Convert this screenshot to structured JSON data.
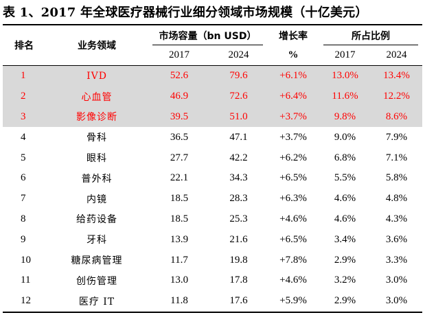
{
  "title": "表 1、2017 年全球医疗器械行业细分领域市场规模（十亿美元）",
  "header": {
    "rank": "排名",
    "field": "业务领域",
    "market_group": "市场容量（bn USD）",
    "growth_top": "增长率",
    "growth_bottom": "%",
    "share_group": "所占比例",
    "y2017": "2017",
    "y2024": "2024",
    "s2017": "2017",
    "s2024": "2024"
  },
  "colors": {
    "highlight_bg": "#d9d9d9",
    "highlight_text": "#ff0000"
  },
  "rows": [
    {
      "rank": "1",
      "field": "IVD",
      "v2017": "52.6",
      "v2024": "79.6",
      "growth": "+6.1%",
      "s2017": "13.0%",
      "s2024": "13.4%",
      "highlight": true
    },
    {
      "rank": "2",
      "field": "心血管",
      "v2017": "46.9",
      "v2024": "72.6",
      "growth": "+6.4%",
      "s2017": "11.6%",
      "s2024": "12.2%",
      "highlight": true
    },
    {
      "rank": "3",
      "field": "影像诊断",
      "v2017": "39.5",
      "v2024": "51.0",
      "growth": "+3.7%",
      "s2017": "9.8%",
      "s2024": "8.6%",
      "highlight": true
    },
    {
      "rank": "4",
      "field": "骨科",
      "v2017": "36.5",
      "v2024": "47.1",
      "growth": "+3.7%",
      "s2017": "9.0%",
      "s2024": "7.9%"
    },
    {
      "rank": "5",
      "field": "眼科",
      "v2017": "27.7",
      "v2024": "42.2",
      "growth": "+6.2%",
      "s2017": "6.8%",
      "s2024": "7.1%"
    },
    {
      "rank": "6",
      "field": "普外科",
      "v2017": "22.1",
      "v2024": "34.3",
      "growth": "+6.5%",
      "s2017": "5.5%",
      "s2024": "5.8%"
    },
    {
      "rank": "7",
      "field": "内镜",
      "v2017": "18.5",
      "v2024": "28.3",
      "growth": "+6.3%",
      "s2017": "4.6%",
      "s2024": "4.8%"
    },
    {
      "rank": "8",
      "field": "给药设备",
      "v2017": "18.5",
      "v2024": "25.3",
      "growth": "+4.6%",
      "s2017": "4.6%",
      "s2024": "4.3%"
    },
    {
      "rank": "9",
      "field": "牙科",
      "v2017": "13.9",
      "v2024": "21.6",
      "growth": "+6.5%",
      "s2017": "3.4%",
      "s2024": "3.6%"
    },
    {
      "rank": "10",
      "field": "糖尿病管理",
      "v2017": "11.7",
      "v2024": "19.8",
      "growth": "+7.8%",
      "s2017": "2.9%",
      "s2024": "3.3%"
    },
    {
      "rank": "11",
      "field": "创伤管理",
      "v2017": "13.0",
      "v2024": "17.8",
      "growth": "+4.6%",
      "s2017": "3.2%",
      "s2024": "3.0%"
    },
    {
      "rank": "12",
      "field": "医疗 IT",
      "v2017": "11.8",
      "v2024": "17.6",
      "growth": "+5.9%",
      "s2017": "2.9%",
      "s2024": "3.0%"
    }
  ]
}
